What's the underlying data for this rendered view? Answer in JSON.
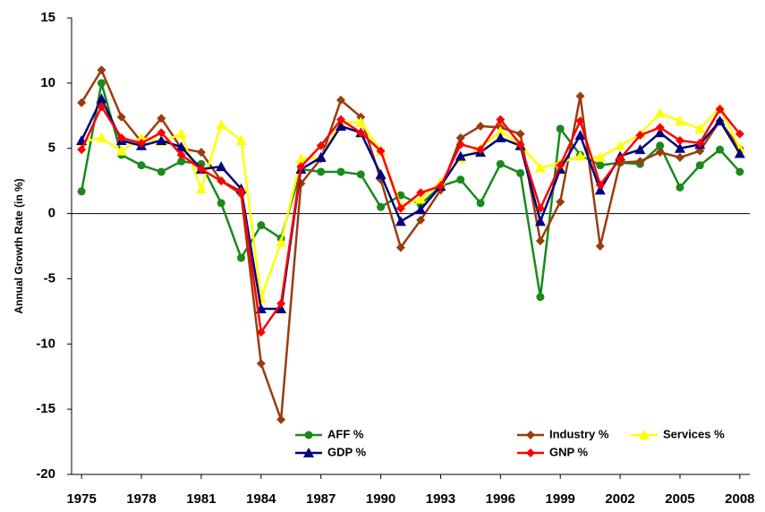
{
  "chart_data": {
    "type": "line",
    "y_label": "Annual Growth Rate (in %)",
    "x": [
      1975,
      1976,
      1977,
      1978,
      1979,
      1980,
      1981,
      1982,
      1983,
      1984,
      1985,
      1986,
      1987,
      1988,
      1989,
      1990,
      1991,
      1992,
      1993,
      1994,
      1995,
      1996,
      1997,
      1998,
      1999,
      2000,
      2001,
      2002,
      2003,
      2004,
      2005,
      2006,
      2007,
      2008
    ],
    "xlim": [
      1974.5,
      2008.5
    ],
    "xticks": [
      1975,
      1978,
      1981,
      1984,
      1987,
      1990,
      1993,
      1996,
      1999,
      2002,
      2005,
      2008
    ],
    "ylim": [
      -20,
      15
    ],
    "yticks": [
      -20,
      -15,
      -10,
      -5,
      0,
      5,
      10,
      15
    ],
    "grid": false,
    "legend": "lower right",
    "series": [
      {
        "name": "AFF %",
        "color": "#1a8a1a",
        "marker": "circle",
        "values": [
          1.7,
          10.0,
          4.5,
          3.7,
          3.2,
          4.0,
          3.8,
          0.8,
          -3.4,
          -0.9,
          -1.9,
          3.4,
          3.2,
          3.2,
          3.0,
          0.5,
          1.4,
          0.7,
          2.1,
          2.6,
          0.8,
          3.8,
          3.1,
          -6.4,
          6.5,
          4.5,
          3.7,
          3.9,
          3.8,
          5.2,
          2.0,
          3.7,
          4.9,
          3.2
        ]
      },
      {
        "name": "Industry %",
        "color": "#993d0d",
        "marker": "diamond",
        "values": [
          8.5,
          11.0,
          7.4,
          5.5,
          7.3,
          5.0,
          4.7,
          2.5,
          1.5,
          -11.5,
          -15.8,
          2.3,
          4.2,
          8.7,
          7.4,
          2.6,
          -2.6,
          -0.5,
          1.8,
          5.8,
          6.7,
          6.6,
          6.1,
          -2.1,
          0.9,
          9.0,
          -2.5,
          3.9,
          4.0,
          4.7,
          4.3,
          4.8,
          7.1,
          5.0
        ]
      },
      {
        "name": "Services %",
        "color": "#ffff00",
        "marker": "triangle",
        "values": [
          5.5,
          5.8,
          4.8,
          5.8,
          5.5,
          6.1,
          1.9,
          6.8,
          5.6,
          -6.5,
          -2.2,
          4.2,
          4.3,
          7.0,
          7.0,
          4.8,
          0.6,
          1.1,
          2.4,
          4.2,
          5.0,
          6.3,
          5.3,
          3.5,
          3.9,
          4.4,
          4.3,
          5.2,
          6.1,
          7.7,
          7.1,
          6.5,
          8.1,
          5.0
        ]
      },
      {
        "name": "GDP %",
        "color": "#000080",
        "marker": "triangle",
        "values": [
          5.6,
          8.8,
          5.6,
          5.2,
          5.6,
          5.1,
          3.4,
          3.6,
          1.9,
          -7.3,
          -7.3,
          3.4,
          4.3,
          6.7,
          6.2,
          3.0,
          -0.6,
          0.3,
          2.1,
          4.4,
          4.7,
          5.8,
          5.2,
          -0.6,
          3.4,
          6.0,
          1.8,
          4.4,
          4.9,
          6.2,
          5.0,
          5.3,
          7.1,
          4.6
        ]
      },
      {
        "name": "GNP %",
        "color": "#ff0000",
        "marker": "diamond",
        "values": [
          4.9,
          8.2,
          5.8,
          5.4,
          6.2,
          4.5,
          3.4,
          2.5,
          1.7,
          -9.1,
          -6.9,
          3.6,
          5.2,
          7.2,
          6.2,
          4.8,
          0.4,
          1.6,
          2.1,
          5.3,
          4.9,
          7.2,
          5.3,
          0.4,
          3.7,
          7.1,
          2.2,
          4.2,
          6.0,
          6.6,
          5.6,
          5.4,
          8.0,
          6.1
        ]
      }
    ]
  }
}
